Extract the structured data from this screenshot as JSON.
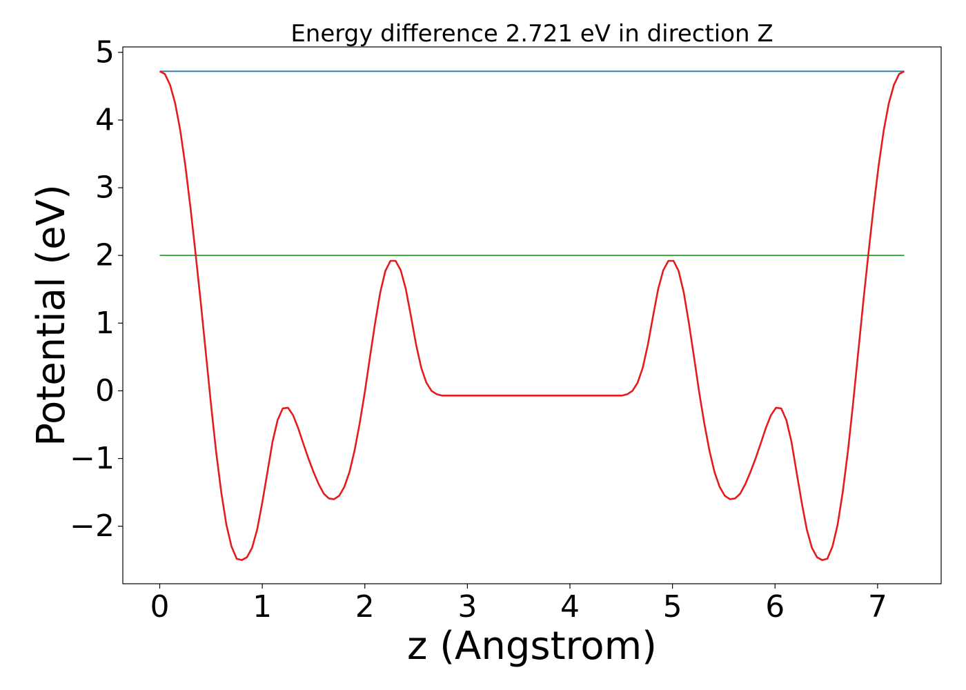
{
  "chart_data": {
    "type": "line",
    "title": "Energy difference 2.721 eV in direction Z",
    "xlabel": "z (Angstrom)",
    "ylabel": "Potential (eV)",
    "xlim": [
      -0.36,
      7.62
    ],
    "ylim": [
      -2.85,
      5.08
    ],
    "x_ticks": [
      {
        "value": 0,
        "label": "0"
      },
      {
        "value": 1,
        "label": "1"
      },
      {
        "value": 2,
        "label": "2"
      },
      {
        "value": 3,
        "label": "3"
      },
      {
        "value": 4,
        "label": "4"
      },
      {
        "value": 5,
        "label": "5"
      },
      {
        "value": 6,
        "label": "6"
      },
      {
        "value": 7,
        "label": "7"
      }
    ],
    "y_ticks": [
      {
        "value": -2,
        "label": "−2"
      },
      {
        "value": -1,
        "label": "−1"
      },
      {
        "value": 0,
        "label": "0"
      },
      {
        "value": 1,
        "label": "1"
      },
      {
        "value": 2,
        "label": "2"
      },
      {
        "value": 3,
        "label": "3"
      },
      {
        "value": 4,
        "label": "4"
      },
      {
        "value": 5,
        "label": "5"
      }
    ],
    "grid": false,
    "legend": "none",
    "series": [
      {
        "color": "#1f77b4",
        "x": [
          0,
          7.26
        ],
        "y": [
          4.72,
          4.72
        ]
      },
      {
        "color": "#2ca02c",
        "x": [
          0,
          7.26
        ],
        "y": [
          2.0,
          2.0
        ]
      },
      {
        "color": "#e41a1c",
        "x": [
          0,
          0.05,
          0.1,
          0.15,
          0.2,
          0.25,
          0.3,
          0.35,
          0.4,
          0.45,
          0.5,
          0.55,
          0.6,
          0.65,
          0.7,
          0.75,
          0.8,
          0.85,
          0.9,
          0.95,
          1.0,
          1.05,
          1.1,
          1.15,
          1.2,
          1.25,
          1.3,
          1.35,
          1.4,
          1.45,
          1.5,
          1.55,
          1.6,
          1.65,
          1.7,
          1.75,
          1.8,
          1.85,
          1.9,
          1.95,
          2.0,
          2.05,
          2.1,
          2.15,
          2.2,
          2.25,
          2.3,
          2.35,
          2.4,
          2.45,
          2.5,
          2.55,
          2.6,
          2.65,
          2.7,
          2.75,
          2.8,
          2.85,
          2.9,
          2.95,
          3.0,
          3.05,
          3.1,
          3.15,
          3.2,
          3.25,
          3.3,
          3.35,
          3.4,
          3.45,
          3.5,
          3.55,
          3.6,
          3.63
        ],
        "y": [
          4.72,
          4.68,
          4.52,
          4.25,
          3.85,
          3.32,
          2.7,
          2.02,
          1.3,
          0.55,
          -0.2,
          -0.9,
          -1.5,
          -1.98,
          -2.3,
          -2.48,
          -2.5,
          -2.46,
          -2.32,
          -2.05,
          -1.65,
          -1.2,
          -0.75,
          -0.43,
          -0.26,
          -0.25,
          -0.36,
          -0.55,
          -0.78,
          -1.0,
          -1.2,
          -1.38,
          -1.52,
          -1.59,
          -1.6,
          -1.55,
          -1.42,
          -1.2,
          -0.88,
          -0.48,
          -0.02,
          0.5,
          1.0,
          1.45,
          1.77,
          1.92,
          1.92,
          1.78,
          1.5,
          1.1,
          0.68,
          0.34,
          0.12,
          0.0,
          -0.05,
          -0.07,
          -0.07,
          -0.07,
          -0.07,
          -0.07,
          -0.07,
          -0.07,
          -0.07,
          -0.07,
          -0.07,
          -0.07,
          -0.07,
          -0.07,
          -0.07,
          -0.07,
          -0.07,
          -0.07,
          -0.07,
          -0.07
        ]
      }
    ]
  }
}
